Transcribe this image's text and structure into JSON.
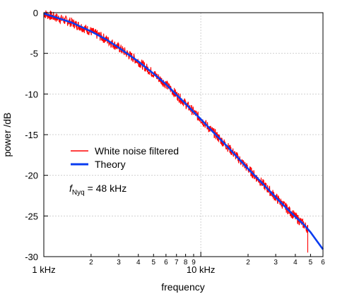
{
  "chart_data": {
    "type": "line",
    "title": "",
    "xlabel": "frequency",
    "ylabel": "power /dB",
    "x_scale": "log",
    "x_unit": "Hz",
    "xlim": [
      1000,
      60000
    ],
    "ylim": [
      -30,
      0
    ],
    "grid": true,
    "legend_position": "middle-left",
    "y_ticks": [
      {
        "value": 0,
        "label": "0"
      },
      {
        "value": -5,
        "label": "-5"
      },
      {
        "value": -10,
        "label": "-10"
      },
      {
        "value": -15,
        "label": "-15"
      },
      {
        "value": -20,
        "label": "-20"
      },
      {
        "value": -25,
        "label": "-25"
      },
      {
        "value": -30,
        "label": "-30"
      }
    ],
    "x_major_ticks": [
      {
        "value": 1000,
        "label": "1 kHz"
      },
      {
        "value": 10000,
        "label": "10 kHz"
      }
    ],
    "x_minor_ticks": [
      {
        "value": 2000,
        "label": "2"
      },
      {
        "value": 3000,
        "label": "3"
      },
      {
        "value": 4000,
        "label": "4"
      },
      {
        "value": 5000,
        "label": "5"
      },
      {
        "value": 6000,
        "label": "6"
      },
      {
        "value": 7000,
        "label": "7"
      },
      {
        "value": 8000,
        "label": "8"
      },
      {
        "value": 9000,
        "label": "9"
      },
      {
        "value": 20000,
        "label": "2"
      },
      {
        "value": 30000,
        "label": "3"
      },
      {
        "value": 40000,
        "label": "4"
      },
      {
        "value": 50000,
        "label": "5"
      },
      {
        "value": 60000,
        "label": "6"
      }
    ],
    "series": [
      {
        "name": "White noise filtered",
        "color": "#ff0000",
        "x": [
          1000,
          1200,
          1500,
          2000,
          2500,
          3000,
          4000,
          5000,
          6000,
          7000,
          8000,
          10000,
          12000,
          15000,
          20000,
          25000,
          30000,
          35000,
          40000,
          45000,
          48000
        ],
        "y": [
          -0.1,
          -0.6,
          -1.2,
          -2.3,
          -3.3,
          -4.3,
          -6.0,
          -7.5,
          -8.8,
          -10.1,
          -11.2,
          -13.1,
          -14.7,
          -16.6,
          -19.2,
          -21.1,
          -22.7,
          -24.0,
          -25.1,
          -26.0,
          -26.6
        ],
        "noise_amplitude_db": 0.6
      },
      {
        "name": "Theory",
        "color": "#0a3cf0",
        "x": [
          1000,
          1200,
          1500,
          2000,
          2500,
          3000,
          4000,
          5000,
          6000,
          7000,
          8000,
          10000,
          12000,
          15000,
          20000,
          25000,
          30000,
          35000,
          40000,
          45000,
          50000,
          55000,
          60000
        ],
        "y": [
          -0.1,
          -0.6,
          -1.2,
          -2.3,
          -3.3,
          -4.3,
          -6.0,
          -7.5,
          -8.8,
          -10.1,
          -11.2,
          -13.1,
          -14.7,
          -16.6,
          -19.2,
          -21.1,
          -22.7,
          -24.0,
          -25.1,
          -26.0,
          -27.0,
          -28.1,
          -29.1
        ]
      }
    ],
    "annotations": [
      {
        "main": "f",
        "sub": "Nyq",
        "rest": " = 48 kHz"
      }
    ]
  }
}
